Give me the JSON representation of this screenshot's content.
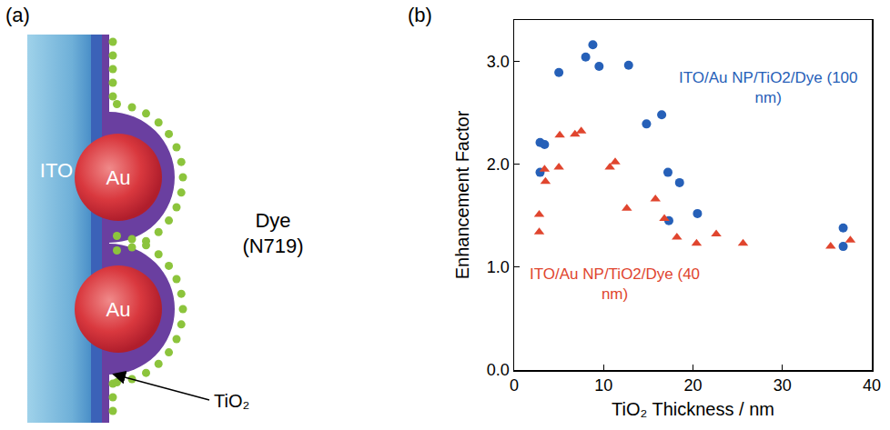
{
  "panel_labels": [
    "(a)",
    "(b)"
  ],
  "diagram": {
    "substrate": "ITO",
    "particles": [
      "Au",
      "Au"
    ],
    "dye": "Dye (N719)",
    "shell": "TiO₂"
  },
  "chart_data": {
    "type": "scatter",
    "x_label": "TiO₂ Thickness / nm",
    "y_label": "Enhancement Factor",
    "xlim": [
      0,
      40
    ],
    "xticks": [
      0,
      10,
      20,
      30,
      40
    ],
    "ylim": [
      0,
      3.4
    ],
    "yticks": [
      {
        "value": 0,
        "label": "0.0"
      },
      {
        "value": 1,
        "label": "1.0"
      },
      {
        "value": 2,
        "label": "2.0"
      },
      {
        "value": 3,
        "label": "3.0"
      }
    ],
    "grid": false,
    "series": [
      {
        "name": "ITO/Au NP/TiO2/Dye (100 nm)",
        "color": "#2660b8",
        "marker": "circle",
        "x": [
          2.9,
          3.4,
          2.9,
          5.0,
          8.0,
          8.8,
          9.5,
          12.8,
          14.8,
          16.5,
          17.2,
          17.3,
          18.5,
          20.5,
          36.8,
          36.8
        ],
        "values": [
          2.21,
          2.19,
          1.92,
          2.89,
          3.04,
          3.16,
          2.95,
          2.96,
          2.39,
          2.48,
          1.92,
          1.45,
          1.82,
          1.52,
          1.38,
          1.2
        ]
      },
      {
        "name": "ITO/Au NP/TiO2/Dye (40 nm)",
        "color": "#e0452e",
        "marker": "triangle",
        "x": [
          2.8,
          2.8,
          3.4,
          3.5,
          5.0,
          5.1,
          6.8,
          7.5,
          10.7,
          11.3,
          12.6,
          15.8,
          16.8,
          18.2,
          20.4,
          22.6,
          25.6,
          35.4,
          37.6
        ],
        "values": [
          1.51,
          1.34,
          1.95,
          1.83,
          1.97,
          2.28,
          2.29,
          2.32,
          1.97,
          2.02,
          1.57,
          1.66,
          1.47,
          1.29,
          1.23,
          1.32,
          1.23,
          1.2,
          1.26
        ]
      }
    ]
  }
}
